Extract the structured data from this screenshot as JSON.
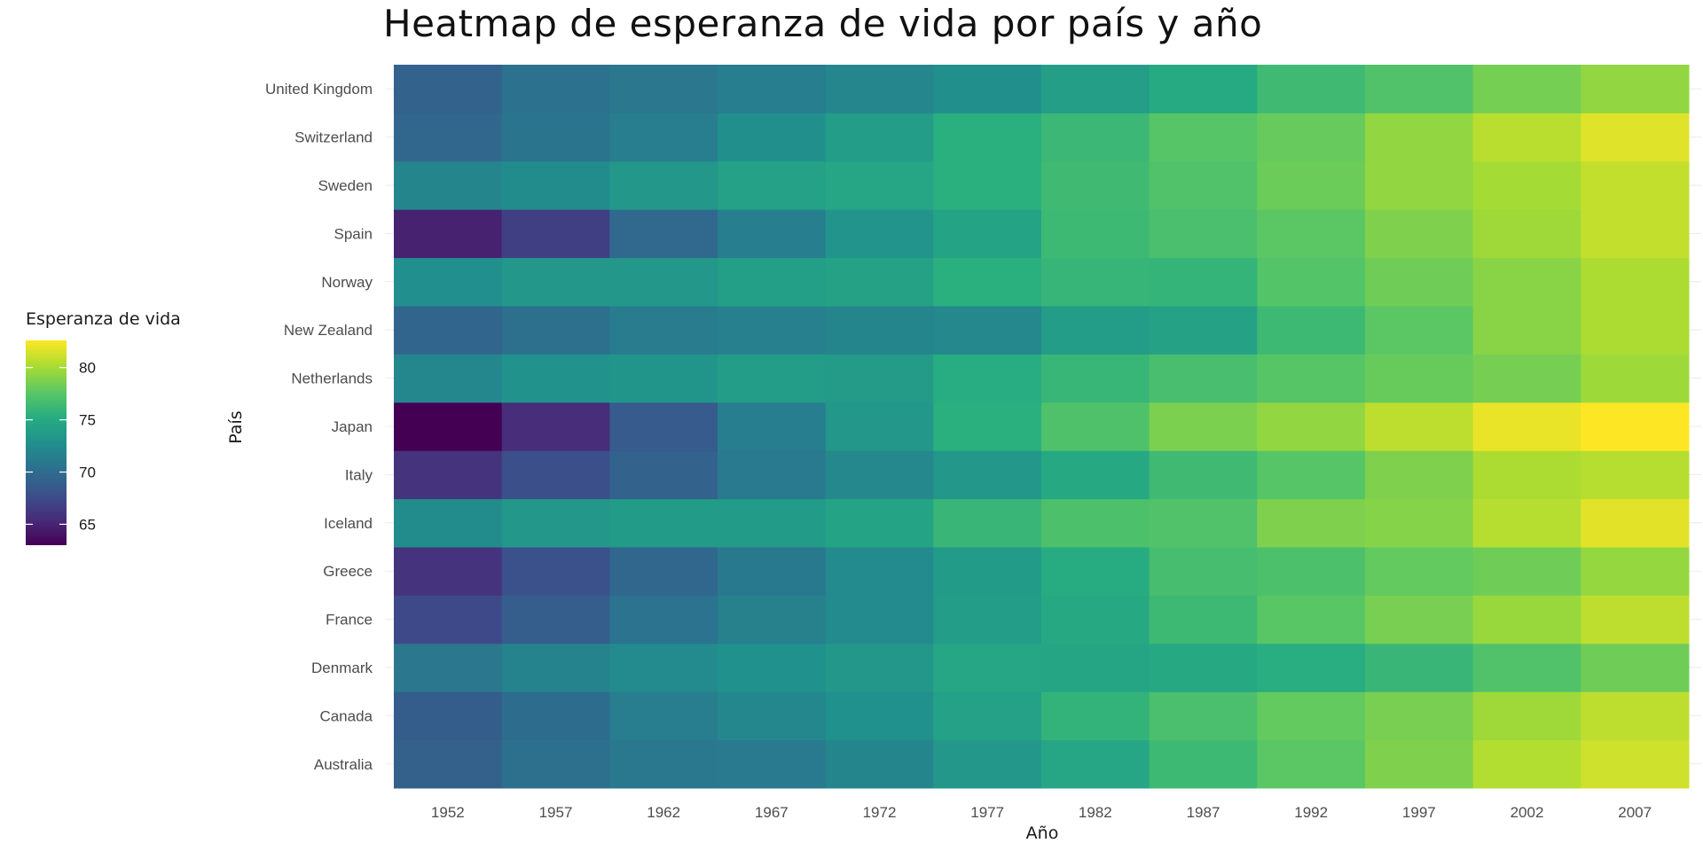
{
  "chart_data": {
    "type": "heatmap",
    "title": "Heatmap de esperanza de vida por país y año",
    "xlabel": "Año",
    "ylabel": "País",
    "x": [
      "1952",
      "1957",
      "1962",
      "1967",
      "1972",
      "1977",
      "1982",
      "1987",
      "1992",
      "1997",
      "2002",
      "2007"
    ],
    "y": [
      "Australia",
      "Canada",
      "Denmark",
      "France",
      "Greece",
      "Iceland",
      "Italy",
      "Japan",
      "Netherlands",
      "New Zealand",
      "Norway",
      "Spain",
      "Sweden",
      "Switzerland",
      "United Kingdom"
    ],
    "values": [
      [
        69.1,
        70.3,
        70.9,
        71.1,
        71.9,
        73.5,
        74.7,
        76.3,
        77.6,
        78.8,
        80.4,
        81.2
      ],
      [
        68.8,
        70.0,
        71.3,
        72.1,
        72.9,
        74.2,
        75.8,
        76.9,
        77.9,
        78.6,
        79.8,
        80.7
      ],
      [
        70.8,
        71.8,
        72.4,
        72.9,
        73.5,
        74.7,
        74.6,
        74.8,
        75.3,
        76.1,
        77.2,
        78.3
      ],
      [
        67.4,
        68.9,
        70.5,
        71.6,
        72.4,
        73.8,
        74.9,
        76.3,
        77.5,
        78.6,
        79.6,
        80.7
      ],
      [
        65.9,
        67.9,
        69.5,
        71.0,
        72.3,
        73.7,
        75.2,
        76.7,
        77.0,
        77.9,
        78.3,
        79.5
      ],
      [
        72.5,
        73.5,
        73.7,
        73.7,
        74.5,
        76.1,
        77.0,
        77.2,
        78.8,
        79.0,
        80.5,
        81.8
      ],
      [
        65.9,
        67.8,
        69.2,
        71.1,
        72.2,
        73.5,
        74.9,
        76.4,
        77.4,
        78.8,
        80.2,
        80.5
      ],
      [
        63.0,
        65.5,
        68.7,
        71.4,
        73.4,
        75.4,
        77.1,
        78.7,
        79.4,
        80.7,
        82.0,
        82.6
      ],
      [
        72.1,
        72.99,
        73.23,
        73.82,
        73.75,
        75.24,
        76.05,
        76.83,
        77.42,
        78.03,
        78.53,
        79.76
      ],
      [
        69.4,
        70.3,
        71.2,
        71.5,
        71.9,
        72.2,
        73.8,
        74.3,
        76.3,
        77.6,
        79.1,
        80.2
      ],
      [
        72.7,
        73.4,
        73.5,
        74.1,
        74.3,
        75.4,
        76.0,
        75.9,
        77.3,
        78.3,
        79.1,
        80.2
      ],
      [
        64.9,
        66.7,
        69.7,
        71.4,
        73.1,
        74.4,
        76.3,
        76.9,
        77.6,
        78.8,
        79.8,
        80.9
      ],
      [
        71.9,
        72.5,
        73.4,
        74.2,
        74.7,
        75.4,
        76.4,
        77.2,
        78.2,
        79.4,
        80.0,
        80.9
      ],
      [
        69.6,
        70.6,
        71.3,
        72.8,
        73.8,
        75.4,
        76.2,
        77.4,
        78.0,
        79.4,
        80.6,
        81.7
      ],
      [
        69.2,
        70.4,
        70.8,
        71.4,
        72.0,
        72.8,
        74.0,
        75.0,
        76.4,
        77.2,
        78.5,
        79.4
      ]
    ],
    "colorscale": "viridis",
    "zlim": [
      63.0,
      82.6
    ],
    "legend": {
      "title": "Esperanza de vida",
      "ticks": [
        65,
        70,
        75,
        80
      ],
      "placement": "left"
    },
    "grid": false
  }
}
